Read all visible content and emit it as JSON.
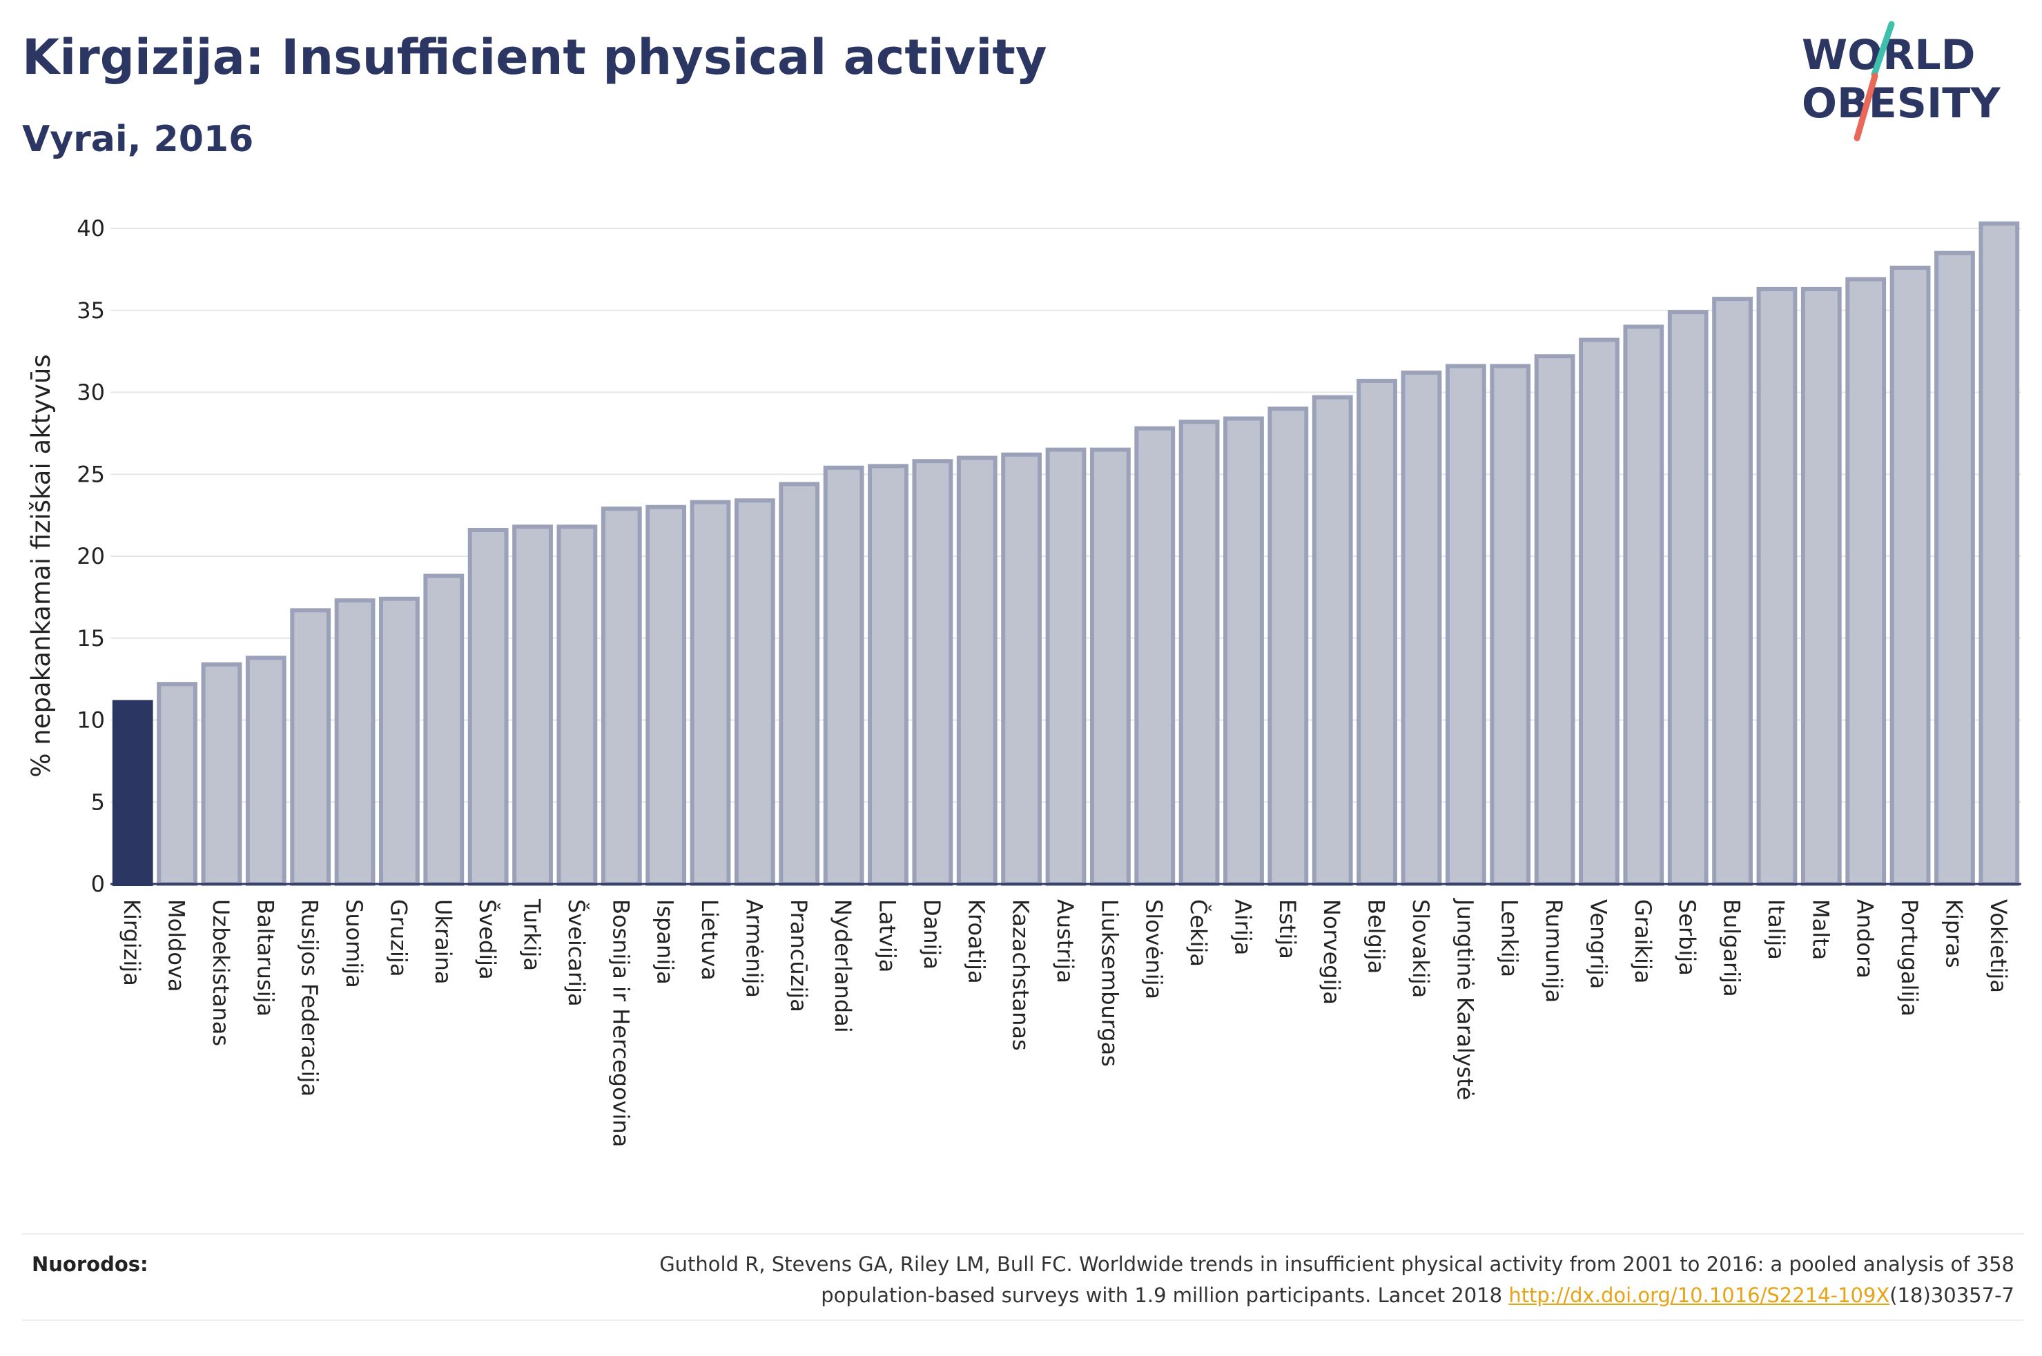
{
  "header": {
    "title": "Kirgizija: Insufficient physical activity",
    "subtitle": "Vyrai, 2016"
  },
  "logo": {
    "line1": "WORLD",
    "line2": "OBESITY"
  },
  "chart_data": {
    "type": "bar",
    "ylabel": "% nepakankamai fiziškai aktyvūs",
    "xlabel": "",
    "ylim": [
      0,
      42
    ],
    "yticks": [
      0,
      5,
      10,
      15,
      20,
      25,
      30,
      35,
      40
    ],
    "grid": true,
    "highlight_category": "Kirgizija",
    "colors": {
      "highlight": "#2b3662",
      "bar_fill": "#bfc3d0",
      "bar_stroke": "#9ba1b8"
    },
    "categories": [
      "Kirgizija",
      "Moldova",
      "Uzbekistanas",
      "Baltarusija",
      "Rusijos Federacija",
      "Suomija",
      "Gruzija",
      "Ukraina",
      "Švedija",
      "Turkija",
      "Šveicarija",
      "Bosnija ir Hercegovina",
      "Ispanija",
      "Lietuva",
      "Armėnija",
      "Prancūzija",
      "Nyderlandai",
      "Latvija",
      "Danija",
      "Kroatija",
      "Kazachstanas",
      "Austrija",
      "Liuksemburgas",
      "Slovėnija",
      "Čekija",
      "Airija",
      "Estija",
      "Norvegija",
      "Belgija",
      "Slovakija",
      "Jungtinė Karalystė",
      "Lenkija",
      "Rumunija",
      "Vengrija",
      "Graikija",
      "Serbija",
      "Bulgarija",
      "Italija",
      "Malta",
      "Andora",
      "Portugalija",
      "Kipras",
      "Vokietija"
    ],
    "values": [
      11.1,
      12.2,
      13.4,
      13.8,
      16.7,
      17.3,
      17.4,
      18.8,
      21.6,
      21.8,
      21.8,
      22.9,
      23.0,
      23.3,
      23.4,
      24.4,
      25.4,
      25.5,
      25.8,
      26.0,
      26.2,
      26.5,
      26.5,
      27.8,
      28.2,
      28.4,
      29.0,
      29.7,
      30.7,
      31.2,
      31.6,
      31.6,
      32.2,
      33.2,
      34.0,
      34.9,
      35.7,
      36.3,
      36.3,
      36.9,
      37.6,
      38.5,
      40.3
    ]
  },
  "footer": {
    "sources_label": "Nuorodos:",
    "citation_line1": "Guthold R, Stevens GA, Riley LM, Bull FC. Worldwide trends in insufficient physical activity from 2001 to 2016: a pooled analysis of 358",
    "citation_line2_prefix": "population-based surveys with 1.9 million participants. Lancet 2018 ",
    "citation_link": "http://dx.doi.org/10.1016/S2214-109X",
    "citation_suffix": "(18)30357-7"
  }
}
